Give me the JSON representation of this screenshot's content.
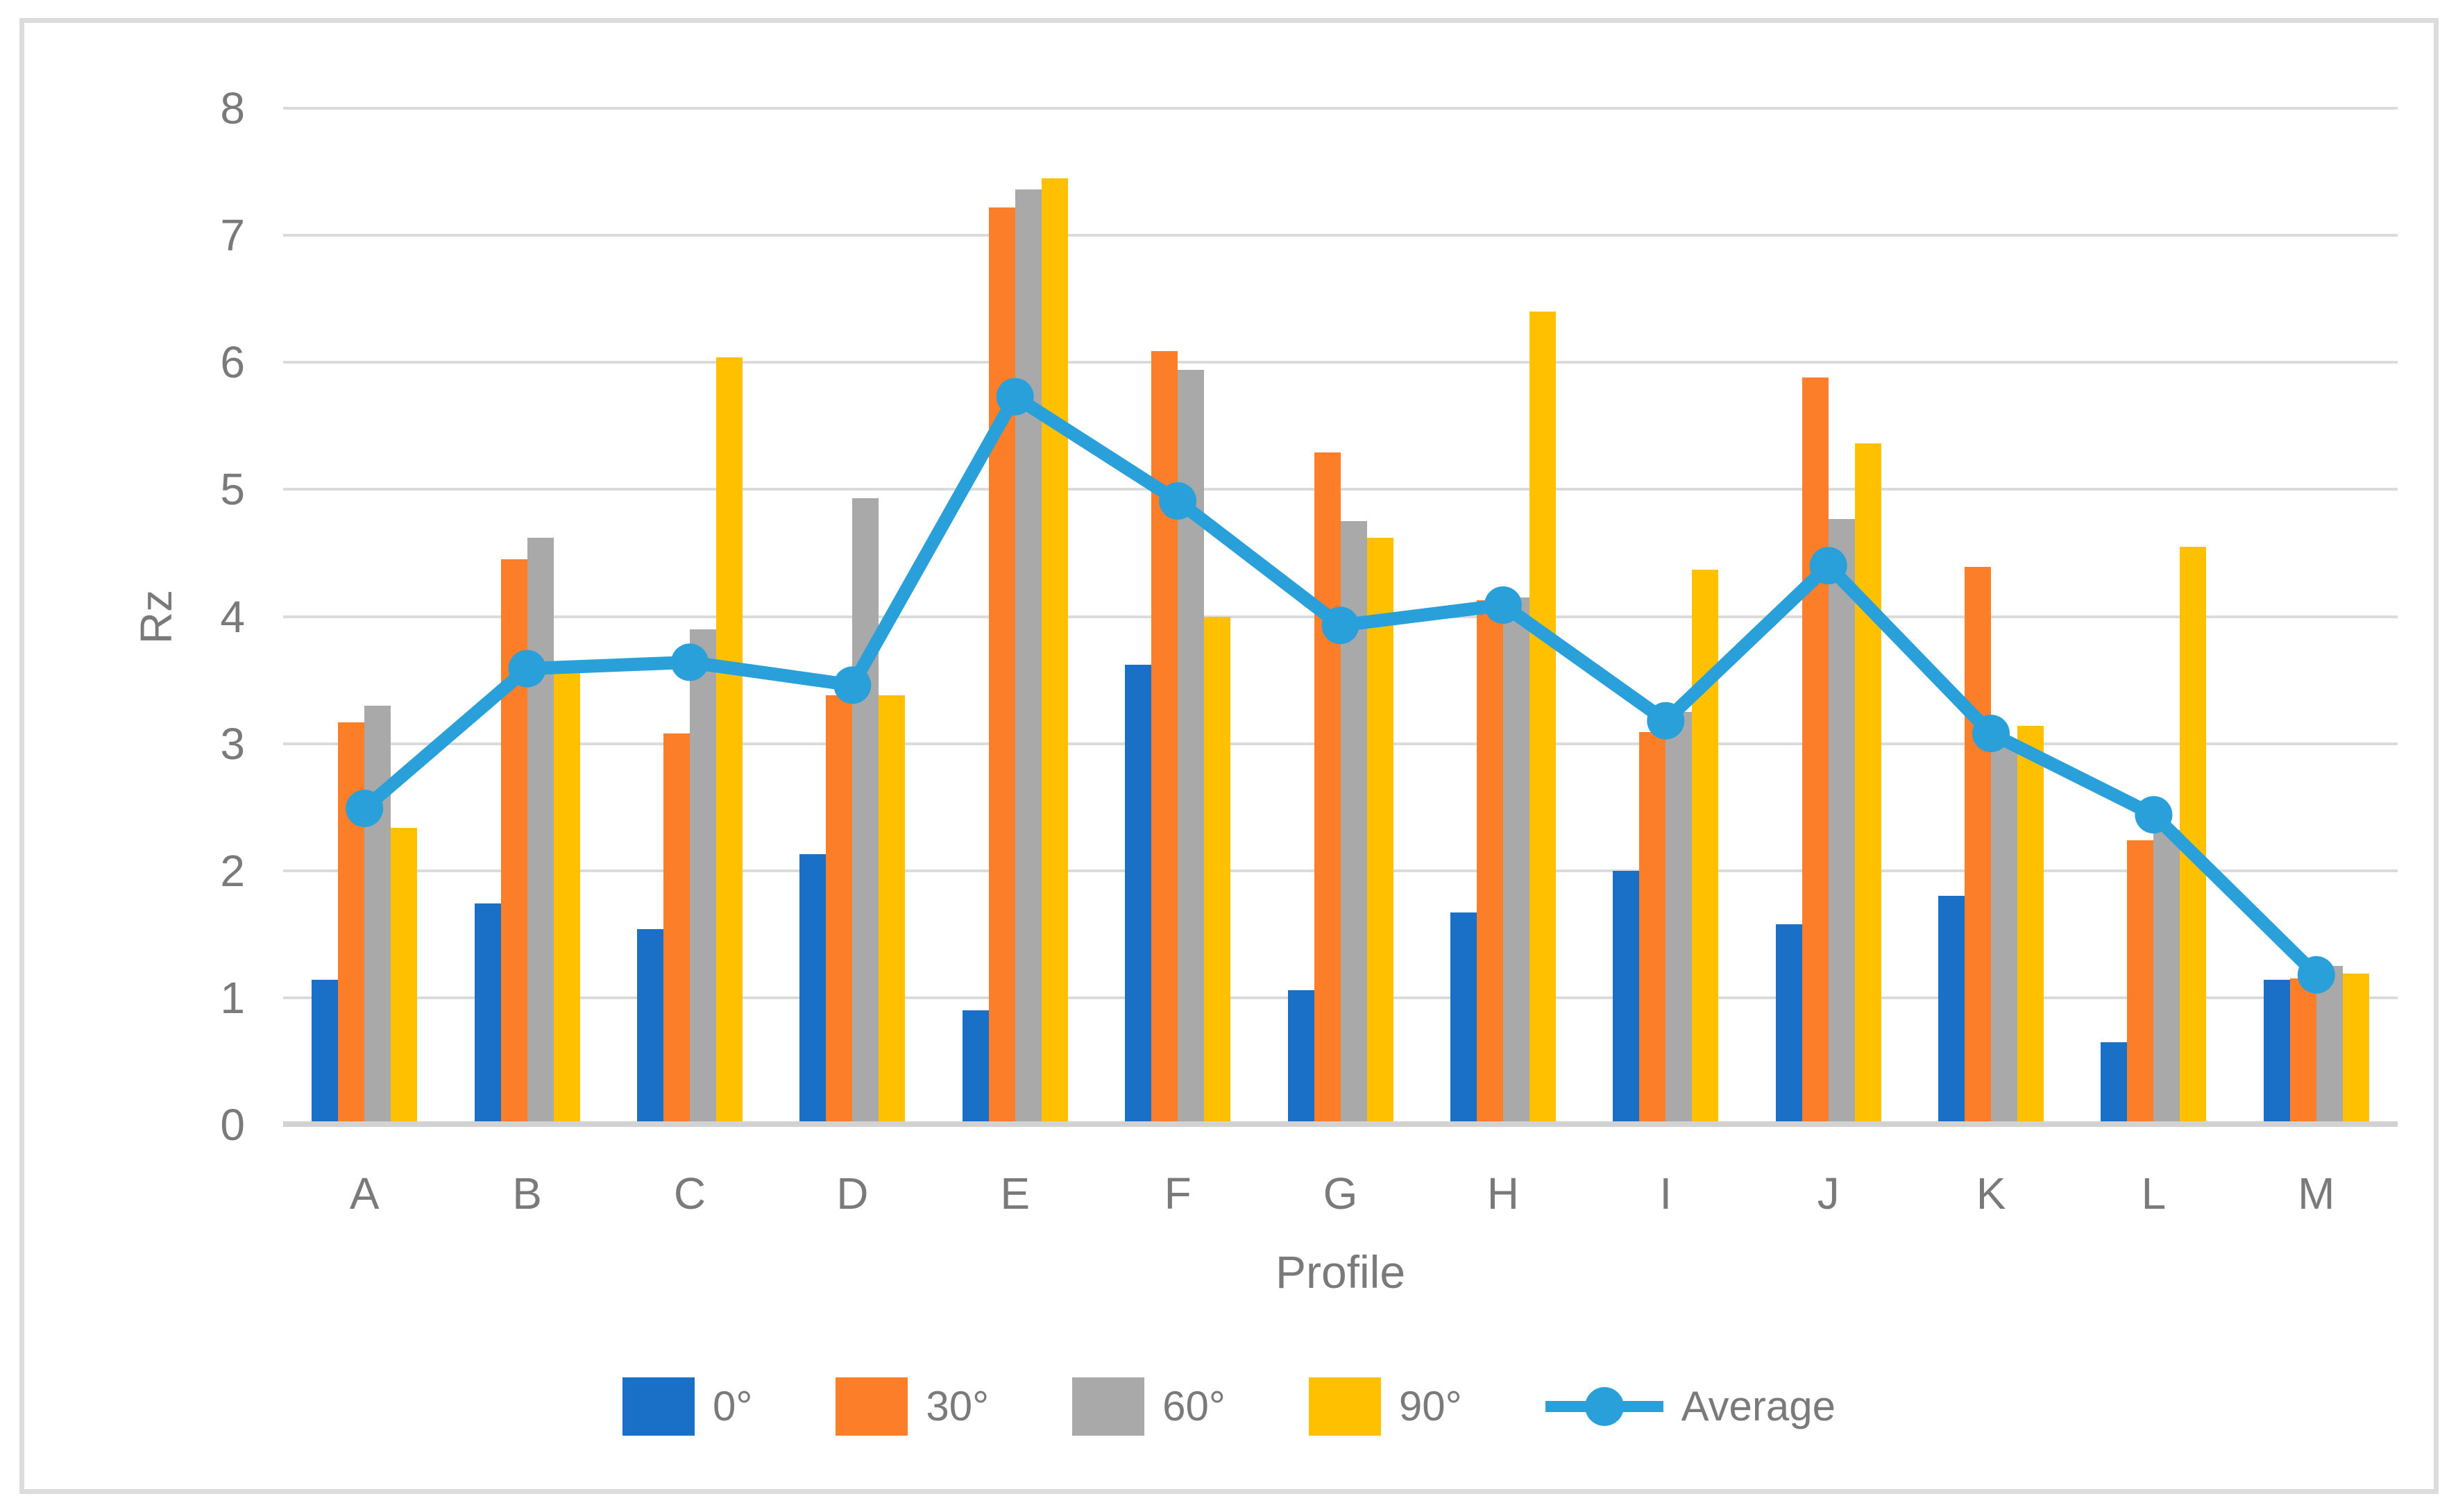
{
  "chart_data": {
    "type": "bar",
    "subtype": "grouped-bars-with-average-line",
    "title": "",
    "xlabel": "Profile",
    "ylabel": "Rz",
    "categories": [
      "A",
      "B",
      "C",
      "D",
      "E",
      "F",
      "G",
      "H",
      "I",
      "J",
      "K",
      "L",
      "M"
    ],
    "series": [
      {
        "name": "0°",
        "color": "#1a70c7",
        "values": [
          1.14,
          1.74,
          1.54,
          2.13,
          0.9,
          3.62,
          1.06,
          1.67,
          2.0,
          1.58,
          1.8,
          0.65,
          1.14
        ]
      },
      {
        "name": "30°",
        "color": "#fd7e28",
        "values": [
          3.17,
          4.45,
          3.08,
          3.38,
          7.22,
          6.09,
          5.29,
          4.13,
          3.09,
          5.88,
          4.39,
          2.24,
          1.15
        ]
      },
      {
        "name": "60°",
        "color": "#a9a9a9",
        "values": [
          3.3,
          4.62,
          3.9,
          4.93,
          7.36,
          5.94,
          4.75,
          4.15,
          3.25,
          4.77,
          2.97,
          2.32,
          1.25
        ]
      },
      {
        "name": "90°",
        "color": "#ffc000",
        "values": [
          2.34,
          3.56,
          6.04,
          3.38,
          7.45,
          4.0,
          4.62,
          6.4,
          4.37,
          5.36,
          3.14,
          4.55,
          1.19
        ]
      }
    ],
    "line_series": {
      "name": "Average",
      "color": "#2aa0db",
      "values": [
        2.49,
        3.59,
        3.64,
        3.46,
        5.73,
        4.91,
        3.93,
        4.09,
        3.18,
        4.4,
        3.08,
        2.44,
        1.18
      ]
    },
    "ylim": [
      0,
      8
    ],
    "y_tick_labels": [
      "0",
      "1",
      "2",
      "3",
      "4",
      "5",
      "6",
      "7",
      "8"
    ],
    "grid": "horizontal",
    "gridline_color": "#dbdbdb",
    "axis_line_color": "#d2d2d2",
    "text_color": "#7a7a7a",
    "legend_position": "bottom"
  },
  "legend": {
    "items": [
      {
        "label": "0°",
        "type": "swatch",
        "color": "#1a70c7"
      },
      {
        "label": "30°",
        "type": "swatch",
        "color": "#fd7e28"
      },
      {
        "label": "60°",
        "type": "swatch",
        "color": "#a9a9a9"
      },
      {
        "label": "90°",
        "type": "swatch",
        "color": "#ffc000"
      },
      {
        "label": "Average",
        "type": "line-marker",
        "color": "#2aa0db"
      }
    ]
  },
  "axis_titles": {
    "x": "Profile",
    "y": "Rz"
  }
}
